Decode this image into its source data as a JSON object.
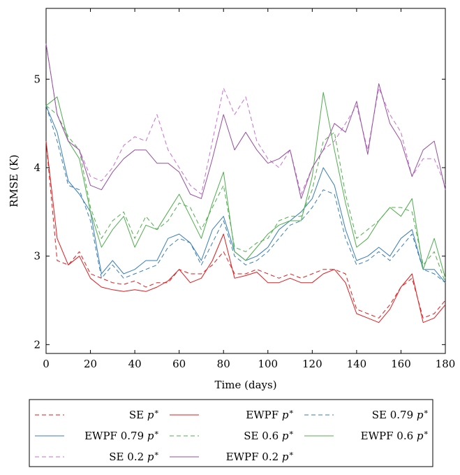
{
  "chart_data": {
    "type": "line",
    "title": "",
    "xlabel": "Time (days)",
    "ylabel": "RMSE (K)",
    "xlim": [
      0,
      180
    ],
    "ylim": [
      1.9,
      5.8
    ],
    "x_ticks": [
      0,
      20,
      40,
      60,
      80,
      100,
      120,
      140,
      160,
      180
    ],
    "y_ticks": [
      2,
      3,
      4,
      5
    ],
    "grid": false,
    "legend_position": "below",
    "x": [
      0,
      5,
      10,
      15,
      20,
      25,
      30,
      35,
      40,
      45,
      50,
      55,
      60,
      65,
      70,
      75,
      80,
      85,
      90,
      95,
      100,
      105,
      110,
      115,
      120,
      125,
      130,
      135,
      140,
      145,
      150,
      155,
      160,
      165,
      170,
      175,
      180
    ],
    "series": [
      {
        "name": "SE p*",
        "color": "#e41a1c",
        "dash": "dashed",
        "values": [
          4.3,
          2.95,
          2.9,
          3.05,
          2.8,
          2.75,
          2.7,
          2.68,
          2.72,
          2.65,
          2.7,
          2.7,
          2.85,
          2.8,
          2.8,
          2.9,
          3.05,
          2.8,
          2.8,
          2.85,
          2.8,
          2.75,
          2.8,
          2.75,
          2.8,
          2.85,
          2.85,
          2.8,
          2.4,
          2.35,
          2.3,
          2.45,
          2.65,
          2.75,
          2.3,
          2.35,
          2.5
        ]
      },
      {
        "name": "EWPF p*",
        "color": "#e41a1c",
        "dash": "solid",
        "values": [
          4.3,
          3.2,
          2.9,
          3.0,
          2.75,
          2.65,
          2.62,
          2.6,
          2.62,
          2.6,
          2.65,
          2.72,
          2.85,
          2.7,
          2.75,
          2.95,
          3.25,
          2.75,
          2.78,
          2.82,
          2.7,
          2.7,
          2.75,
          2.7,
          2.7,
          2.8,
          2.85,
          2.7,
          2.35,
          2.3,
          2.25,
          2.4,
          2.65,
          2.8,
          2.25,
          2.3,
          2.45
        ]
      },
      {
        "name": "SE 0.79p*",
        "color": "#377eb8",
        "dash": "dashed",
        "values": [
          4.7,
          4.3,
          3.8,
          3.75,
          3.4,
          2.75,
          2.9,
          2.75,
          2.8,
          2.85,
          2.9,
          3.1,
          3.2,
          3.15,
          2.9,
          3.15,
          3.4,
          3.0,
          2.9,
          2.95,
          3.05,
          3.2,
          3.35,
          3.4,
          3.55,
          3.75,
          3.7,
          3.2,
          2.9,
          2.95,
          3.05,
          2.95,
          3.1,
          3.25,
          2.85,
          2.8,
          2.7
        ]
      },
      {
        "name": "EWPF 0.79p*",
        "color": "#377eb8",
        "dash": "solid",
        "values": [
          4.7,
          4.4,
          3.85,
          3.7,
          3.5,
          2.8,
          2.95,
          2.8,
          2.85,
          2.95,
          2.95,
          3.2,
          3.25,
          3.15,
          2.95,
          3.3,
          3.45,
          3.05,
          2.95,
          3.0,
          3.1,
          3.3,
          3.4,
          3.5,
          3.65,
          4.0,
          3.8,
          3.3,
          2.95,
          3.0,
          3.1,
          3.0,
          3.2,
          3.3,
          2.85,
          2.85,
          2.7
        ]
      },
      {
        "name": "SE 0.6p*",
        "color": "#4daf4a",
        "dash": "dashed",
        "values": [
          4.7,
          4.6,
          4.35,
          4.2,
          3.55,
          3.2,
          3.4,
          3.5,
          3.2,
          3.45,
          3.3,
          3.4,
          3.6,
          3.55,
          3.3,
          3.55,
          3.8,
          3.1,
          3.05,
          3.15,
          3.2,
          3.4,
          3.45,
          3.45,
          3.75,
          4.3,
          4.4,
          3.7,
          3.2,
          3.3,
          3.4,
          3.55,
          3.55,
          3.5,
          2.9,
          3.05,
          2.7
        ]
      },
      {
        "name": "EWPF 0.6p*",
        "color": "#4daf4a",
        "dash": "solid",
        "values": [
          4.7,
          4.8,
          4.3,
          4.1,
          3.5,
          3.1,
          3.3,
          3.45,
          3.1,
          3.35,
          3.3,
          3.5,
          3.7,
          3.45,
          3.2,
          3.6,
          3.95,
          3.05,
          2.95,
          3.1,
          3.25,
          3.35,
          3.4,
          3.4,
          3.9,
          4.85,
          4.2,
          3.6,
          3.1,
          3.2,
          3.4,
          3.55,
          3.45,
          3.65,
          2.85,
          3.2,
          2.75
        ]
      },
      {
        "name": "SE 0.2p*",
        "color": "#c86fd2",
        "dash": "dashed",
        "values": [
          5.4,
          4.6,
          4.3,
          4.2,
          3.9,
          3.85,
          4.0,
          4.25,
          4.35,
          4.3,
          4.6,
          4.2,
          4.0,
          3.8,
          3.7,
          4.3,
          4.9,
          4.6,
          4.8,
          4.3,
          4.1,
          4.0,
          4.2,
          3.7,
          4.0,
          4.2,
          4.3,
          4.5,
          4.7,
          4.2,
          4.9,
          4.6,
          4.4,
          3.9,
          4.1,
          4.1,
          3.8
        ]
      },
      {
        "name": "EWPF 0.2p*",
        "color": "#984ea3",
        "dash": "solid",
        "values": [
          5.4,
          4.6,
          4.3,
          4.2,
          3.8,
          3.75,
          3.95,
          4.1,
          4.2,
          4.2,
          4.05,
          4.05,
          3.95,
          3.7,
          3.65,
          4.1,
          4.6,
          4.2,
          4.4,
          4.2,
          4.05,
          4.1,
          4.2,
          3.65,
          4.0,
          4.2,
          4.5,
          4.4,
          4.75,
          4.15,
          4.95,
          4.5,
          4.3,
          3.9,
          4.2,
          4.3,
          3.75
        ]
      }
    ]
  },
  "legend": {
    "entries": [
      {
        "prefix": "SE",
        "math": "p",
        "sup": "∗"
      },
      {
        "prefix": "EWPF",
        "math": "p",
        "sup": "∗"
      },
      {
        "prefix": "SE 0.79",
        "math": "p",
        "sup": "∗"
      },
      {
        "prefix": "EWPF 0.79",
        "math": "p",
        "sup": "∗"
      },
      {
        "prefix": "SE 0.6",
        "math": "p",
        "sup": "∗"
      },
      {
        "prefix": "EWPF 0.6",
        "math": "p",
        "sup": "∗"
      },
      {
        "prefix": "SE 0.2",
        "math": "p",
        "sup": "∗"
      },
      {
        "prefix": "EWPF 0.2",
        "math": "p",
        "sup": "∗"
      }
    ]
  }
}
